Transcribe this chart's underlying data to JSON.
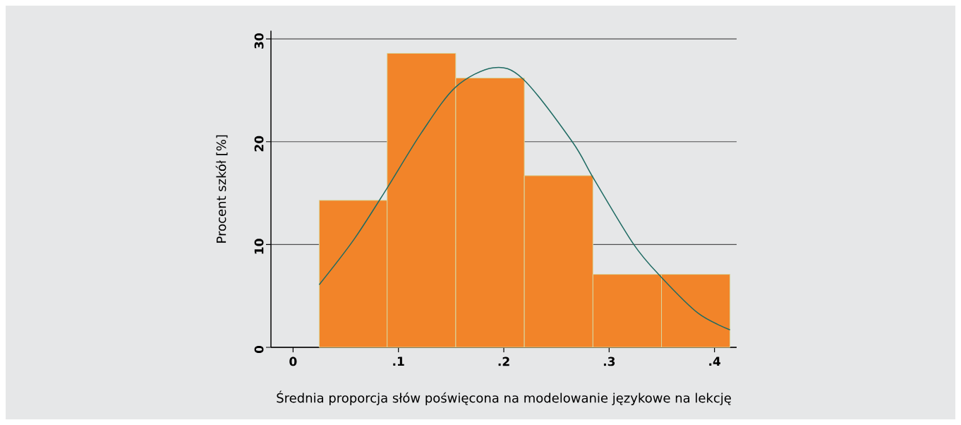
{
  "chart_data": {
    "type": "histogram",
    "xlabel": "Średnia proporcja słów poświęcona na modelowanie językowe na lekcję",
    "ylabel": "Procent szkół [%]",
    "series": [
      {
        "type": "histogram",
        "color": "#f28429",
        "bins": [
          0.0248,
          0.0893,
          0.1544,
          0.2195,
          0.2846,
          0.3497,
          0.4147
        ],
        "values": [
          14.3,
          28.6,
          26.2,
          16.7,
          7.1,
          7.1
        ]
      },
      {
        "type": "line",
        "color": "#1f6b63",
        "x": [
          0.0248,
          0.0578,
          0.0893,
          0.122,
          0.1541,
          0.19,
          0.2183,
          0.265,
          0.2854,
          0.3234,
          0.3497,
          0.3847,
          0.4147
        ],
        "values": [
          6.1,
          10.5,
          15.5,
          20.9,
          25.3,
          27.2,
          26.1,
          20.0,
          16.4,
          10.0,
          6.8,
          3.3,
          1.7
        ]
      }
    ],
    "xlim": [
      -0.021,
      0.421
    ],
    "ylim": [
      0,
      30.8
    ],
    "xticks": [
      0,
      {
        "value": 0.1,
        "label": ".1"
      },
      {
        "value": 0.2,
        "label": ".2"
      },
      {
        "value": 0.3,
        "label": ".3"
      },
      {
        "value": 0.4,
        "label": ".4"
      }
    ],
    "yticks": [
      0,
      10,
      20,
      30
    ],
    "grid": "y"
  }
}
